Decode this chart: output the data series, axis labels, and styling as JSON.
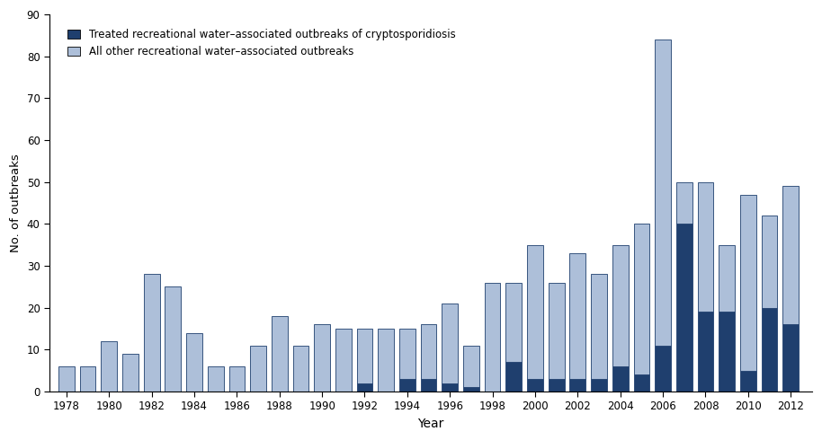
{
  "years": [
    1978,
    1979,
    1980,
    1981,
    1982,
    1983,
    1984,
    1985,
    1986,
    1987,
    1988,
    1989,
    1990,
    1991,
    1992,
    1993,
    1994,
    1995,
    1996,
    1997,
    1998,
    1999,
    2000,
    2001,
    2002,
    2003,
    2004,
    2005,
    2006,
    2007,
    2008,
    2009,
    2010,
    2011,
    2012
  ],
  "crypto": [
    0,
    0,
    0,
    0,
    0,
    0,
    0,
    0,
    0,
    0,
    0,
    0,
    0,
    0,
    2,
    0,
    3,
    3,
    2,
    1,
    0,
    7,
    3,
    3,
    3,
    3,
    6,
    4,
    11,
    40,
    19,
    19,
    5,
    20,
    16
  ],
  "other": [
    6,
    6,
    12,
    9,
    28,
    25,
    14,
    6,
    6,
    11,
    18,
    11,
    16,
    15,
    13,
    15,
    12,
    13,
    19,
    10,
    26,
    19,
    32,
    23,
    30,
    25,
    29,
    36,
    73,
    10,
    31,
    16,
    42,
    22,
    33
  ],
  "crypto_color": "#1f3f6e",
  "other_color": "#adbfd9",
  "bar_edge_color": "#1f3f6e",
  "xlabel": "Year",
  "ylabel": "No. of outbreaks",
  "ylim": [
    0,
    90
  ],
  "yticks": [
    0,
    10,
    20,
    30,
    40,
    50,
    60,
    70,
    80,
    90
  ],
  "xticks": [
    1978,
    1980,
    1982,
    1984,
    1986,
    1988,
    1990,
    1992,
    1994,
    1996,
    1998,
    2000,
    2002,
    2004,
    2006,
    2008,
    2010,
    2012
  ],
  "legend_crypto": "Treated recreational water–associated outbreaks of cryptosporidiosis",
  "legend_other": "All other recreational water–associated outbreaks",
  "bar_width": 0.75,
  "figsize": [
    9.14,
    4.9
  ],
  "dpi": 100
}
